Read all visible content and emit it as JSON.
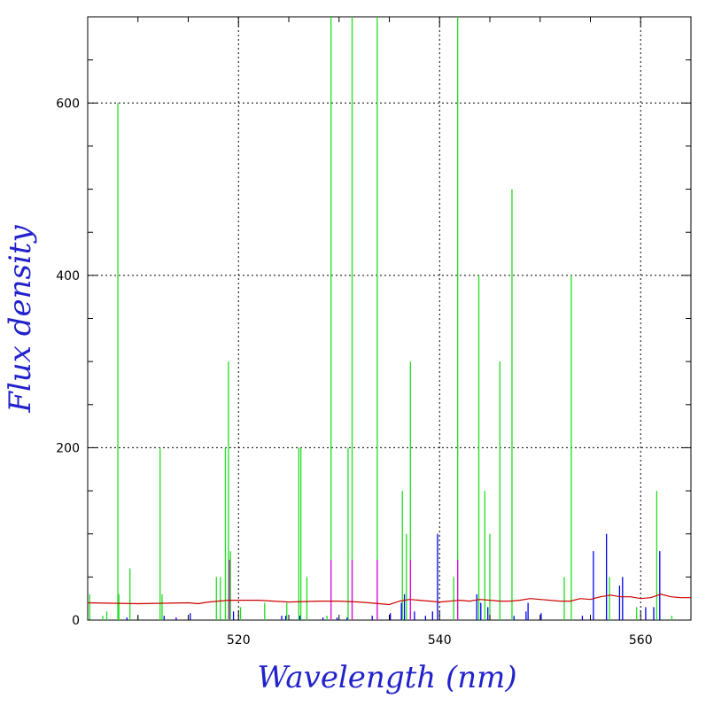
{
  "chart_data": {
    "type": "line",
    "title": "",
    "xlabel": "Wavelength (nm)",
    "ylabel": "Flux density",
    "xlim": [
      505,
      565
    ],
    "ylim": [
      0,
      700
    ],
    "x_ticks": [
      520,
      540,
      560
    ],
    "y_ticks": [
      0,
      200,
      400,
      600
    ],
    "grid": true,
    "grid_style": "dotted",
    "legend": "none",
    "colors": {
      "green": "#22dd22",
      "magenta": "#ee00ee",
      "blue": "#0000ee",
      "red": "#cc0000"
    },
    "series": [
      {
        "color": "#22dd22",
        "style": "vertical-lines",
        "x": [
          505.2,
          506.5,
          506.9,
          508.0,
          508.1,
          509.2,
          510.0,
          512.2,
          512.4,
          517.8,
          518.2,
          518.7,
          519.0,
          519.2,
          520.2,
          522.6,
          524.8,
          526.0,
          526.2,
          526.8,
          528.8,
          529.2,
          530.9,
          531.3,
          533.8,
          536.3,
          536.7,
          537.1,
          541.4,
          541.8,
          543.9,
          544.5,
          545.0,
          546.0,
          547.2,
          552.4,
          553.1,
          556.9,
          559.6,
          561.6,
          563.1
        ],
        "y": [
          30,
          5,
          10,
          600,
          30,
          60,
          5,
          200,
          30,
          50,
          50,
          200,
          300,
          80,
          15,
          20,
          20,
          200,
          200,
          50,
          5,
          700,
          200,
          700,
          700,
          150,
          100,
          300,
          50,
          700,
          400,
          150,
          100,
          300,
          500,
          50,
          400,
          50,
          15,
          150,
          5
        ]
      },
      {
        "color": "#ee00ee",
        "style": "vertical-lines",
        "x": [
          519.1,
          529.2,
          531.3,
          533.8,
          537.1,
          541.8
        ],
        "y": [
          70,
          70,
          70,
          70,
          70,
          70
        ]
      },
      {
        "color": "#0000ee",
        "style": "vertical-lines",
        "x": [
          508.9,
          512.6,
          513.8,
          515.2,
          519.5,
          524.3,
          524.7,
          526.1,
          528.4,
          529.8,
          530.8,
          533.3,
          535.1,
          536.2,
          536.5,
          537.5,
          538.6,
          539.3,
          539.8,
          543.7,
          544.1,
          544.8,
          547.4,
          548.6,
          548.8,
          550.1,
          554.2,
          555.3,
          556.6,
          557.9,
          558.2,
          560.5,
          561.3,
          561.9
        ],
        "y": [
          3,
          5,
          3,
          8,
          10,
          5,
          5,
          5,
          3,
          3,
          3,
          5,
          8,
          20,
          30,
          10,
          5,
          10,
          100,
          30,
          20,
          15,
          5,
          10,
          20,
          8,
          5,
          80,
          100,
          40,
          50,
          15,
          15,
          80
        ]
      },
      {
        "color": "#cc0000",
        "style": "line",
        "x": [
          505,
          510,
          515,
          516,
          517,
          518,
          519,
          520,
          522,
          525,
          528,
          530,
          532,
          533,
          534,
          535,
          536,
          537,
          538,
          539,
          540,
          541,
          542,
          543,
          544,
          545,
          546,
          547,
          548,
          549,
          550,
          552,
          553,
          554,
          555,
          556,
          557,
          558,
          559,
          560,
          561,
          562,
          563,
          564,
          565
        ],
        "y": [
          20,
          19,
          20,
          19,
          21,
          22,
          23,
          23,
          23,
          21,
          22,
          22,
          21,
          20,
          19,
          18,
          22,
          24,
          23,
          22,
          21,
          22,
          23,
          22,
          24,
          23,
          22,
          22,
          23,
          25,
          24,
          22,
          22,
          25,
          24,
          27,
          29,
          27,
          27,
          25,
          26,
          30,
          27,
          26,
          26
        ]
      }
    ]
  }
}
